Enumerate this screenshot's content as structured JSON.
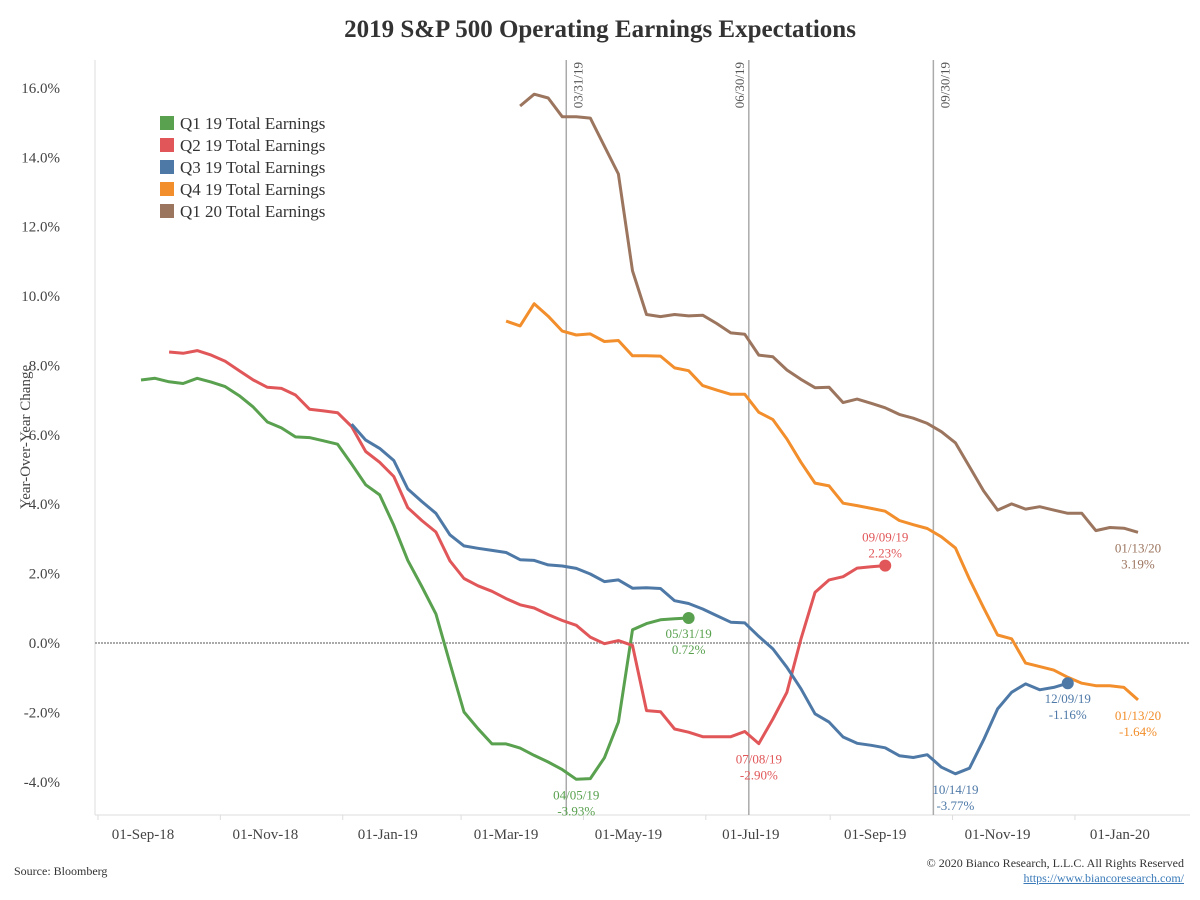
{
  "chart_data": {
    "type": "line",
    "title": "2019 S&P 500 Operating Earnings Expectations",
    "xlabel": "",
    "ylabel": "Year-Over-Year Change",
    "ylim": [
      -5,
      16.8
    ],
    "xlim": [
      "2018-08-18",
      "2020-02-05"
    ],
    "y_ticks": [
      "-4.0%",
      "-2.0%",
      "0.0%",
      "2.0%",
      "4.0%",
      "6.0%",
      "8.0%",
      "10.0%",
      "12.0%",
      "14.0%",
      "16.0%"
    ],
    "y_tick_values": [
      -4,
      -2,
      0,
      2,
      4,
      6,
      8,
      10,
      12,
      14,
      16
    ],
    "x_ticks": [
      {
        "date": "2018-09-01",
        "label": "01-Sep-18"
      },
      {
        "date": "2018-11-01",
        "label": "01-Nov-18"
      },
      {
        "date": "2019-01-01",
        "label": "01-Jan-19"
      },
      {
        "date": "2019-03-01",
        "label": "01-Mar-19"
      },
      {
        "date": "2019-05-01",
        "label": "01-May-19"
      },
      {
        "date": "2019-07-01",
        "label": "01-Jul-19"
      },
      {
        "date": "2019-09-01",
        "label": "01-Sep-19"
      },
      {
        "date": "2019-11-01",
        "label": "01-Nov-19"
      },
      {
        "date": "2020-01-01",
        "label": "01-Jan-20"
      }
    ],
    "grid": false,
    "zero_line": true,
    "legend_placement": "top-left",
    "reference_lines": [
      {
        "date": "2019-03-31",
        "label": "03/31/19",
        "side": "right"
      },
      {
        "date": "2019-06-30",
        "label": "06/30/19",
        "side": "left"
      },
      {
        "date": "2019-09-30",
        "label": "09/30/19",
        "side": "right"
      }
    ],
    "series": [
      {
        "name": "Q1 19 Total Earnings",
        "color": "#59a14f",
        "start": "2018-08-31",
        "step_days": 7,
        "values": [
          7.58,
          7.63,
          7.53,
          7.48,
          7.63,
          7.52,
          7.39,
          7.13,
          6.8,
          6.37,
          6.2,
          5.94,
          5.92,
          5.83,
          5.73,
          5.16,
          4.56,
          4.27,
          3.39,
          2.38,
          1.63,
          0.84,
          -0.58,
          -1.99,
          -2.47,
          -2.91,
          -2.91,
          -3.03,
          -3.24,
          -3.43,
          -3.65,
          -3.93,
          -3.91,
          -3.31,
          -2.28,
          0.38,
          0.56,
          0.67,
          0.7,
          0.72
        ]
      },
      {
        "name": "Q2 19 Total Earnings",
        "color": "#e15759",
        "start": "2018-09-14",
        "step_days": 7,
        "values": [
          8.39,
          8.35,
          8.43,
          8.3,
          8.12,
          7.85,
          7.58,
          7.37,
          7.34,
          7.15,
          6.74,
          6.69,
          6.64,
          6.24,
          5.52,
          5.21,
          4.8,
          3.9,
          3.53,
          3.2,
          2.37,
          1.86,
          1.65,
          1.49,
          1.28,
          1.1,
          1.01,
          0.82,
          0.65,
          0.51,
          0.17,
          -0.02,
          0.07,
          -0.07,
          -1.95,
          -1.98,
          -2.48,
          -2.57,
          -2.7,
          -2.7,
          -2.7,
          -2.55,
          -2.9,
          -2.19,
          -1.42,
          0.12,
          1.46,
          1.82,
          1.91,
          2.16,
          2.2,
          2.23
        ]
      },
      {
        "name": "Q3 19 Total Earnings",
        "color": "#4e79a7",
        "start": "2018-12-14",
        "step_days": 7,
        "values": [
          6.31,
          5.85,
          5.61,
          5.26,
          4.44,
          4.08,
          3.74,
          3.12,
          2.8,
          2.73,
          2.67,
          2.61,
          2.4,
          2.38,
          2.25,
          2.22,
          2.15,
          1.99,
          1.77,
          1.82,
          1.58,
          1.59,
          1.57,
          1.22,
          1.14,
          0.98,
          0.79,
          0.6,
          0.58,
          0.19,
          -0.17,
          -0.7,
          -1.32,
          -2.04,
          -2.28,
          -2.71,
          -2.89,
          -2.95,
          -3.02,
          -3.25,
          -3.3,
          -3.22,
          -3.58,
          -3.77,
          -3.61,
          -2.8,
          -1.9,
          -1.42,
          -1.18,
          -1.35,
          -1.28,
          -1.16
        ]
      },
      {
        "name": "Q4 19 Total Earnings",
        "color": "#f28e2b",
        "start": "2019-03-01",
        "step_days": 7,
        "values": [
          9.28,
          9.14,
          9.78,
          9.42,
          8.99,
          8.88,
          8.91,
          8.69,
          8.72,
          8.28,
          8.28,
          8.27,
          7.93,
          7.85,
          7.42,
          7.29,
          7.17,
          7.17,
          6.65,
          6.44,
          5.88,
          5.21,
          4.61,
          4.53,
          4.03,
          3.96,
          3.88,
          3.8,
          3.53,
          3.41,
          3.3,
          3.06,
          2.74,
          1.84,
          1.02,
          0.23,
          0.12,
          -0.58,
          -0.68,
          -0.78,
          -0.99,
          -1.16,
          -1.23,
          -1.23,
          -1.28,
          -1.64
        ]
      },
      {
        "name": "Q1 20 Total Earnings",
        "color": "#9c755f",
        "start": "2019-03-08",
        "step_days": 7,
        "values": [
          15.48,
          15.82,
          15.71,
          15.17,
          15.17,
          15.13,
          14.32,
          13.52,
          10.73,
          9.47,
          9.41,
          9.47,
          9.43,
          9.45,
          9.21,
          8.94,
          8.9,
          8.3,
          8.25,
          7.87,
          7.6,
          7.36,
          7.37,
          6.93,
          7.03,
          6.91,
          6.78,
          6.59,
          6.48,
          6.33,
          6.09,
          5.77,
          5.08,
          4.39,
          3.83,
          4.01,
          3.86,
          3.93,
          3.83,
          3.74,
          3.74,
          3.24,
          3.33,
          3.31,
          3.19
        ]
      }
    ],
    "annotations": [
      {
        "series": 0,
        "index": 31,
        "date_label": "04/05/19",
        "value_label": "-3.93%",
        "placement": "below",
        "dot": false
      },
      {
        "series": 0,
        "index": 39,
        "date_label": "05/31/19",
        "value_label": "0.72%",
        "placement": "below",
        "dot": true
      },
      {
        "series": 1,
        "index": 42,
        "date_label": "07/08/19",
        "value_label": "-2.90%",
        "placement": "below",
        "dot": false
      },
      {
        "series": 1,
        "index": 51,
        "date_label": "09/09/19",
        "value_label": "2.23%",
        "placement": "above",
        "dot": true
      },
      {
        "series": 2,
        "index": 43,
        "date_label": "10/14/19",
        "value_label": "-3.77%",
        "placement": "below",
        "dot": false
      },
      {
        "series": 2,
        "index": 51,
        "date_label": "12/09/19",
        "value_label": "-1.16%",
        "placement": "below",
        "dot": true
      },
      {
        "series": 3,
        "index": 45,
        "date_label": "01/13/20",
        "value_label": "-1.64%",
        "placement": "below",
        "dot": false
      },
      {
        "series": 4,
        "index": 44,
        "date_label": "01/13/20",
        "value_label": "3.19%",
        "placement": "below",
        "dot": false
      }
    ]
  },
  "footer": {
    "source": "Source: Bloomberg",
    "copyright": "© 2020 Bianco Research, L.L.C. All Rights Reserved",
    "link": "https://www.biancoresearch.com/"
  }
}
